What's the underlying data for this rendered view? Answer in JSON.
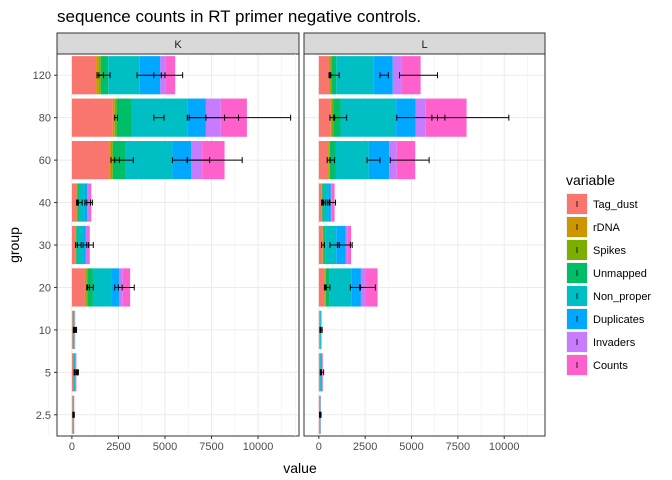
{
  "chart_data": {
    "type": "bar",
    "orientation": "horizontal",
    "stacked": true,
    "title": "sequence counts in RT primer negative controls.",
    "xlabel": "value",
    "ylabel": "group",
    "xlim": [
      -800,
      12200
    ],
    "x_ticks": [
      0,
      2500,
      5000,
      7500,
      10000
    ],
    "x_tick_labels": [
      "0",
      "2500",
      "5000",
      "7500",
      "10000"
    ],
    "categories": [
      "2.5",
      "5",
      "10",
      "20",
      "30",
      "40",
      "60",
      "80",
      "120"
    ],
    "facets": [
      "K",
      "L"
    ],
    "grid": true,
    "legend_title": "variable",
    "legend_position": "right",
    "series": [
      {
        "name": "Tag_dust",
        "color": "#F8766D"
      },
      {
        "name": "rDNA",
        "color": "#CD9600"
      },
      {
        "name": "Spikes",
        "color": "#7CAE00"
      },
      {
        "name": "Unmapped",
        "color": "#00BE67"
      },
      {
        "name": "Non_proper",
        "color": "#00BFC4"
      },
      {
        "name": "Duplicates",
        "color": "#00A9FF"
      },
      {
        "name": "Invaders",
        "color": "#C77CFF"
      },
      {
        "name": "Counts",
        "color": "#FF61CC"
      }
    ],
    "panels": [
      {
        "facet": "K",
        "values": {
          "120": [
            1300,
            150,
            100,
            400,
            1700,
            1100,
            300,
            500
          ],
          "80": [
            2200,
            100,
            100,
            800,
            3000,
            1000,
            800,
            1400
          ],
          "60": [
            2000,
            100,
            100,
            700,
            2500,
            1000,
            600,
            1200
          ],
          "40": [
            250,
            30,
            20,
            80,
            300,
            150,
            60,
            150
          ],
          "30": [
            200,
            20,
            20,
            60,
            300,
            150,
            60,
            150
          ],
          "20": [
            700,
            80,
            50,
            300,
            1000,
            400,
            200,
            400
          ],
          "10": [
            40,
            5,
            5,
            15,
            60,
            20,
            10,
            20
          ],
          "5": [
            60,
            5,
            5,
            20,
            80,
            30,
            10,
            30
          ],
          "2.5": [
            30,
            5,
            5,
            10,
            40,
            15,
            5,
            15
          ]
        },
        "errors": {
          "120": [
            [
              1350,
              1450,
              1700
            ],
            [
              1350,
              2050
            ],
            [
              3500,
              4400,
              5000
            ],
            [
              4800,
              5950
            ]
          ],
          "80": [
            [
              2300,
              2450
            ],
            [
              4400,
              4950
            ],
            [
              6200,
              7200,
              8200,
              8950
            ],
            [
              6300,
              11750
            ]
          ],
          "60": [
            [
              2100,
              2550
            ],
            [
              2300,
              3300
            ],
            [
              5400,
              6200,
              7400
            ],
            [
              6200,
              9150
            ]
          ],
          "40": [
            [
              250,
              350
            ],
            [
              300,
              550
            ],
            [
              700,
              1000
            ],
            [
              800,
              1100
            ]
          ],
          "30": [
            [
              200,
              300
            ],
            [
              300,
              500
            ],
            [
              600,
              900
            ],
            [
              800,
              1150
            ]
          ],
          "20": [
            [
              800,
              950
            ],
            [
              850,
              1150
            ],
            [
              2300,
              2700
            ],
            [
              2500,
              3350
            ]
          ],
          "10": [
            [
              80,
              120
            ],
            [
              100,
              200
            ],
            [
              150,
              250
            ]
          ],
          "5": [
            [
              120,
              180
            ],
            [
              150,
              300
            ],
            [
              250,
              350
            ]
          ],
          "2.5": [
            [
              50,
              90
            ],
            [
              70,
              130
            ]
          ]
        }
      },
      {
        "facet": "L",
        "values": {
          "120": [
            550,
            80,
            60,
            250,
            2000,
            1050,
            450,
            1050
          ],
          "80": [
            650,
            60,
            60,
            400,
            3000,
            1050,
            550,
            2200
          ],
          "60": [
            500,
            60,
            40,
            300,
            1800,
            1100,
            400,
            1000
          ],
          "40": [
            150,
            20,
            20,
            60,
            250,
            150,
            50,
            150
          ],
          "30": [
            200,
            20,
            20,
            100,
            600,
            500,
            100,
            200
          ],
          "20": [
            300,
            40,
            30,
            200,
            1200,
            500,
            250,
            650
          ],
          "10": [
            30,
            5,
            5,
            15,
            50,
            20,
            10,
            20
          ],
          "5": [
            40,
            5,
            5,
            20,
            80,
            30,
            10,
            30
          ],
          "2.5": [
            20,
            5,
            5,
            10,
            40,
            15,
            5,
            15
          ]
        },
        "errors": {
          "120": [
            [
              550,
              650
            ],
            [
              600,
              1100
            ],
            [
              3300,
              3750
            ],
            [
              4350,
              6400
            ]
          ],
          "80": [
            [
              600,
              850
            ],
            [
              800,
              1500
            ],
            [
              4200,
              6400,
              6800
            ],
            [
              6100,
              10250
            ]
          ],
          "60": [
            [
              450,
              600
            ],
            [
              600,
              850
            ],
            [
              2600,
              3300
            ],
            [
              3850,
              5950
            ]
          ],
          "40": [
            [
              150,
              250
            ],
            [
              200,
              350
            ],
            [
              450,
              600
            ],
            [
              550,
              900
            ]
          ],
          "30": [
            [
              150,
              300
            ],
            [
              600,
              1100
            ],
            [
              1000,
              1800
            ],
            [
              1100,
              1700
            ]
          ],
          "20": [
            [
              300,
              400
            ],
            [
              350,
              600
            ],
            [
              1700,
              2250
            ],
            [
              2200,
              3050
            ]
          ],
          "10": [
            [
              60,
              100
            ],
            [
              100,
              180
            ]
          ],
          "5": [
            [
              80,
              140
            ],
            [
              100,
              260
            ]
          ],
          "2.5": [
            [
              40,
              80
            ],
            [
              60,
              120
            ]
          ]
        }
      }
    ]
  }
}
